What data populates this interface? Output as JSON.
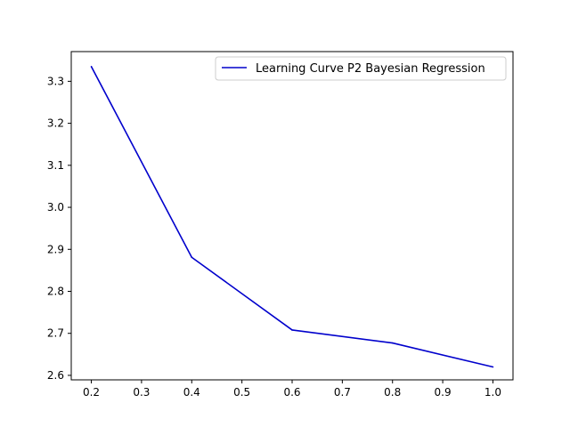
{
  "chart_data": {
    "type": "line",
    "title": "",
    "xlabel": "",
    "ylabel": "",
    "x": [
      0.2,
      0.4,
      0.6,
      0.8,
      1.0
    ],
    "series": [
      {
        "name": "Learning Curve P2 Bayesian Regression",
        "color": "#0000cc",
        "values": [
          3.335,
          2.881,
          2.708,
          2.677,
          2.62
        ]
      }
    ],
    "xticks": [
      "0.2",
      "0.3",
      "0.4",
      "0.5",
      "0.6",
      "0.7",
      "0.8",
      "0.9",
      "1.0"
    ],
    "yticks": [
      "2.6",
      "2.7",
      "2.8",
      "2.9",
      "3.0",
      "3.1",
      "3.2",
      "3.3"
    ],
    "xlim": [
      0.16,
      1.04
    ],
    "ylim": [
      2.5893,
      3.3707
    ],
    "grid": false,
    "legend_position": "top-right"
  }
}
